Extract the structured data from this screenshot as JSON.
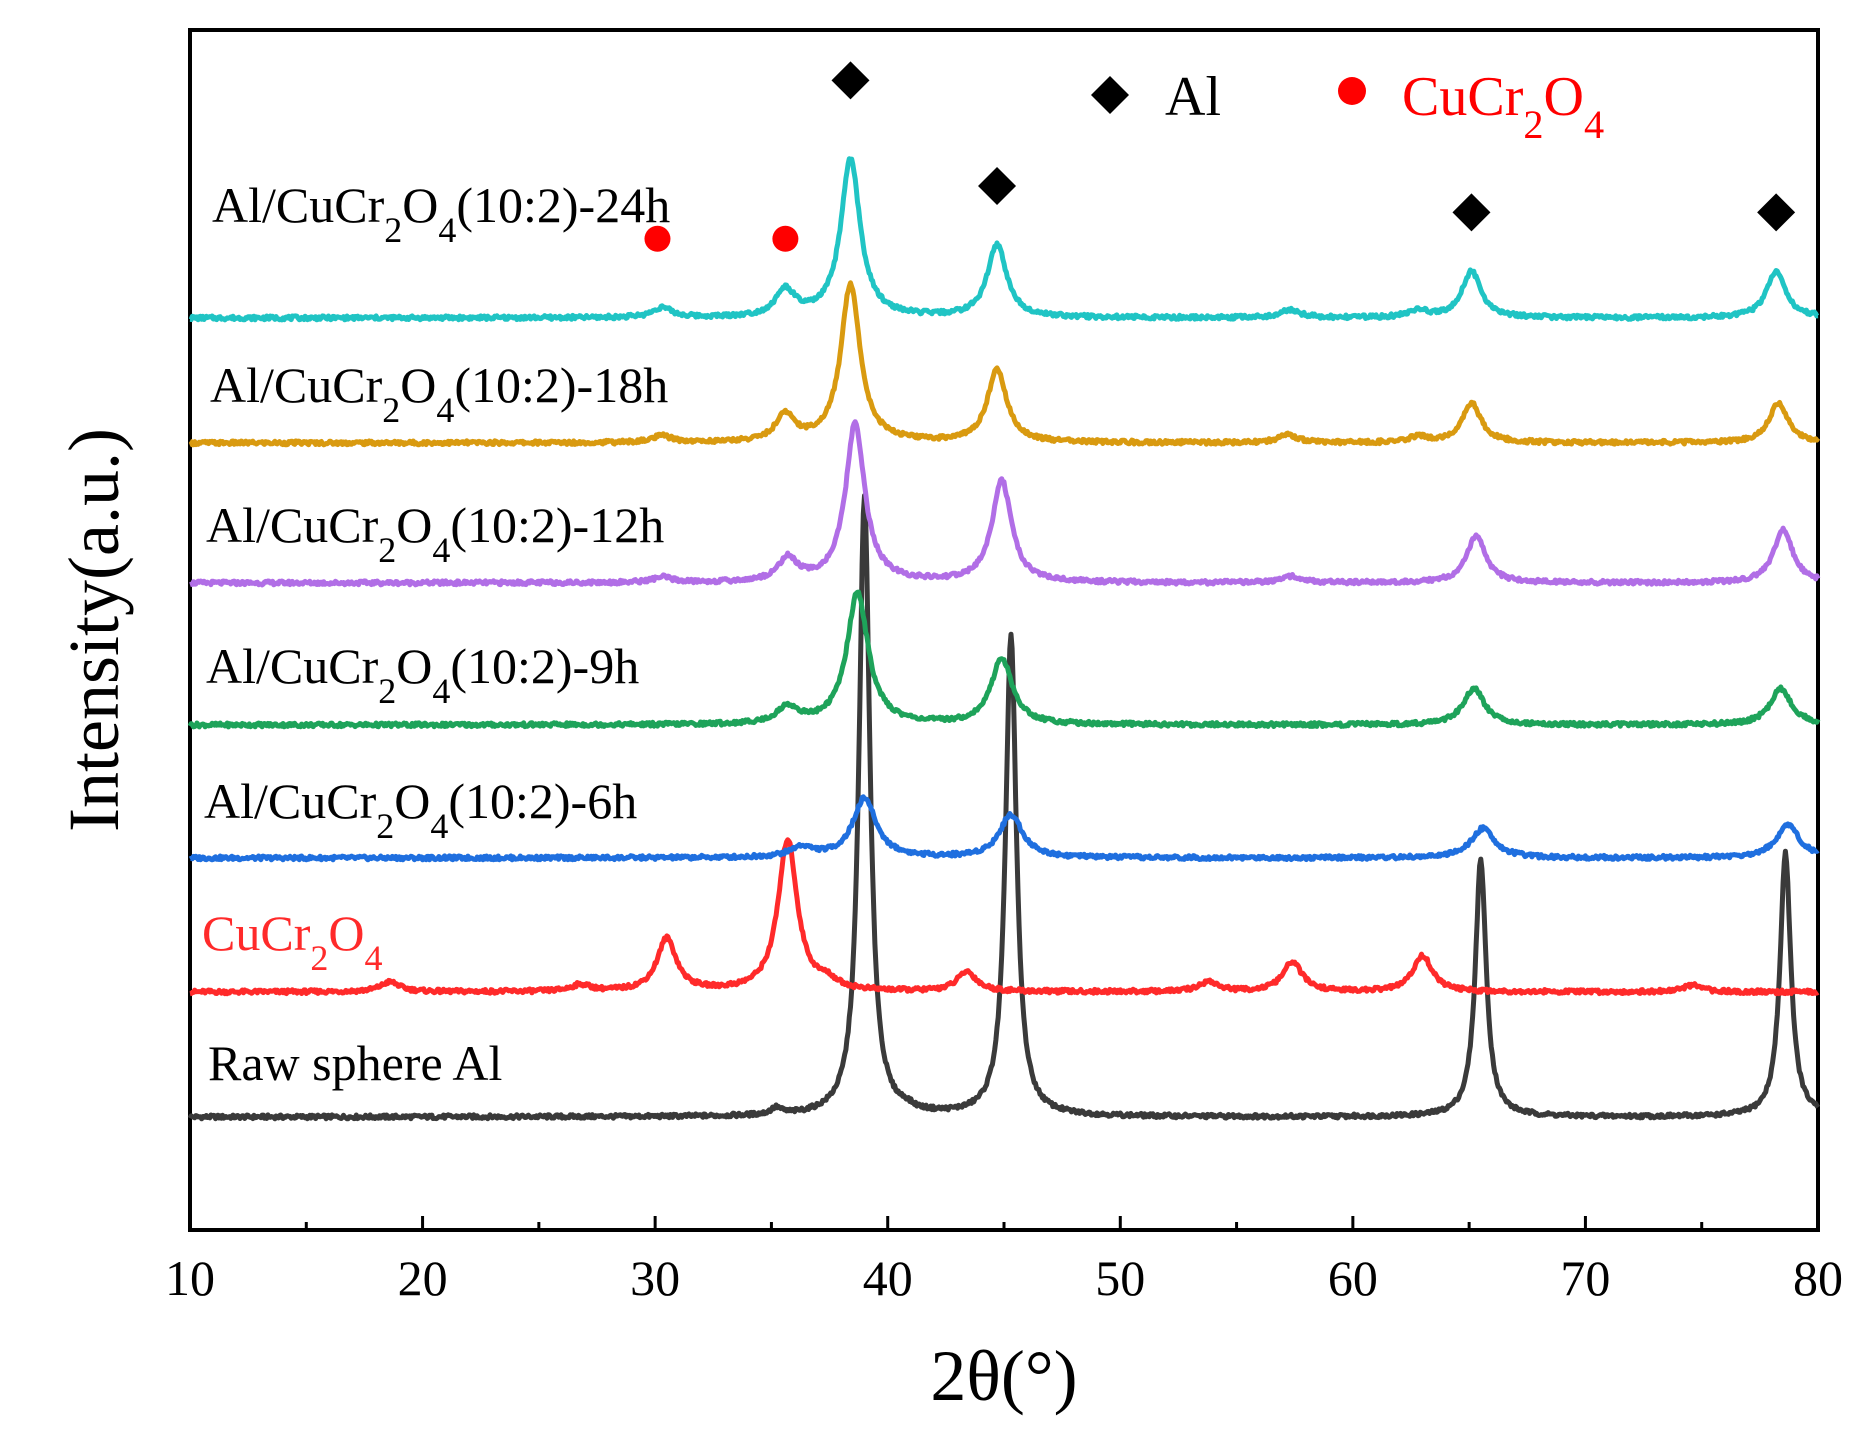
{
  "chart_data": {
    "type": "line",
    "xlabel": "2θ(°)",
    "ylabel": "Intensity(a.u.)",
    "xlim": [
      10,
      80
    ],
    "xticks": [
      "10",
      "20",
      "30",
      "40",
      "50",
      "60",
      "70",
      "80"
    ],
    "yticks_shown": false,
    "grid": false,
    "legend_position": "top-right",
    "legend": [
      {
        "label": "Al",
        "marker": "diamond",
        "color": "#000000"
      },
      {
        "label_parts": [
          {
            "text": "CuCr"
          },
          {
            "text": "2",
            "sub": true
          },
          {
            "text": "O"
          },
          {
            "text": "4",
            "sub": true
          }
        ],
        "marker": "circle",
        "color": "#ff0000"
      }
    ],
    "series": [
      {
        "name": "Raw sphere Al",
        "label_parts": [
          {
            "text": "Raw sphere Al"
          }
        ],
        "color": "#3a3a3a",
        "label_color": "#000000",
        "peaks": [
          [
            35.2,
            0.01
          ],
          [
            39.0,
            0.94
          ],
          [
            40.8,
            0.005
          ],
          [
            45.3,
            0.73
          ],
          [
            65.5,
            0.39
          ],
          [
            78.6,
            0.4
          ]
        ],
        "peak_width": 0.28
      },
      {
        "name": "CuCr2O4",
        "label_parts": [
          {
            "text": "CuCr"
          },
          {
            "text": "2",
            "sub": true
          },
          {
            "text": "O"
          },
          {
            "text": "4",
            "sub": true
          }
        ],
        "color": "#ff2a2a",
        "label_color": "#ff2a2a",
        "peaks": [
          [
            18.6,
            0.015
          ],
          [
            26.8,
            0.01
          ],
          [
            30.5,
            0.08
          ],
          [
            35.7,
            0.23
          ],
          [
            37.4,
            0.012
          ],
          [
            43.4,
            0.03
          ],
          [
            53.8,
            0.015
          ],
          [
            57.4,
            0.045
          ],
          [
            63.0,
            0.055
          ],
          [
            74.6,
            0.01
          ]
        ],
        "peak_width": 0.5
      },
      {
        "name": "Al/CuCr2O4(10:2)-6h",
        "label_parts": [
          {
            "text": "Al/CuCr"
          },
          {
            "text": "2",
            "sub": true
          },
          {
            "text": "O"
          },
          {
            "text": "4",
            "sub": true
          },
          {
            "text": "(10:2)-6h"
          }
        ],
        "color": "#1f6fdf",
        "label_color": "#000000",
        "peaks": [
          [
            36.3,
            0.015
          ],
          [
            39.0,
            0.09
          ],
          [
            45.3,
            0.065
          ],
          [
            65.6,
            0.045
          ],
          [
            78.7,
            0.05
          ]
        ],
        "peak_width": 0.6
      },
      {
        "name": "Al/CuCr2O4(10:2)-9h",
        "label_parts": [
          {
            "text": "Al/CuCr"
          },
          {
            "text": "2",
            "sub": true
          },
          {
            "text": "O"
          },
          {
            "text": "4",
            "sub": true
          },
          {
            "text": "(10:2)-9h"
          }
        ],
        "color": "#1ea35a",
        "label_color": "#000000",
        "peaks": [
          [
            35.7,
            0.025
          ],
          [
            38.7,
            0.2
          ],
          [
            44.9,
            0.1
          ],
          [
            65.2,
            0.055
          ],
          [
            78.4,
            0.055
          ]
        ],
        "peak_width": 0.55
      },
      {
        "name": "Al/CuCr2O4(10:2)-12h",
        "label_parts": [
          {
            "text": "Al/CuCr"
          },
          {
            "text": "2",
            "sub": true
          },
          {
            "text": "O"
          },
          {
            "text": "4",
            "sub": true
          },
          {
            "text": "(10:2)-12h"
          }
        ],
        "color": "#b16ee6",
        "label_color": "#000000",
        "peaks": [
          [
            30.3,
            0.008
          ],
          [
            35.7,
            0.035
          ],
          [
            38.6,
            0.24
          ],
          [
            44.9,
            0.155
          ],
          [
            57.4,
            0.01
          ],
          [
            65.3,
            0.07
          ],
          [
            78.5,
            0.08
          ]
        ],
        "peak_width": 0.5
      },
      {
        "name": "Al/CuCr2O4(10:2)-18h",
        "label_parts": [
          {
            "text": "Al/CuCr"
          },
          {
            "text": "2",
            "sub": true
          },
          {
            "text": "O"
          },
          {
            "text": "4",
            "sub": true
          },
          {
            "text": "(10:2)-18h"
          }
        ],
        "color": "#d99a10",
        "label_color": "#000000",
        "peaks": [
          [
            30.3,
            0.01
          ],
          [
            35.6,
            0.04
          ],
          [
            38.4,
            0.24
          ],
          [
            44.7,
            0.11
          ],
          [
            57.2,
            0.012
          ],
          [
            62.8,
            0.008
          ],
          [
            65.1,
            0.06
          ],
          [
            78.3,
            0.06
          ]
        ],
        "peak_width": 0.5
      },
      {
        "name": "Al/CuCr2O4(10:2)-24h",
        "label_parts": [
          {
            "text": "Al/CuCr"
          },
          {
            "text": "2",
            "sub": true
          },
          {
            "text": "O"
          },
          {
            "text": "4",
            "sub": true
          },
          {
            "text": "(10:2)-24h"
          }
        ],
        "color": "#20c4c4",
        "label_color": "#000000",
        "peaks": [
          [
            30.3,
            0.015
          ],
          [
            35.6,
            0.04
          ],
          [
            38.4,
            0.24
          ],
          [
            44.7,
            0.11
          ],
          [
            57.3,
            0.012
          ],
          [
            62.8,
            0.01
          ],
          [
            65.1,
            0.07
          ],
          [
            78.2,
            0.07
          ]
        ],
        "peak_width": 0.5
      }
    ],
    "markers": [
      {
        "type": "circle",
        "color": "#ff0000",
        "x": 30.1,
        "series": "Al/CuCr2O4(10:2)-24h",
        "level": 0.12
      },
      {
        "type": "circle",
        "color": "#ff0000",
        "x": 35.6,
        "series": "Al/CuCr2O4(10:2)-24h",
        "level": 0.12
      },
      {
        "type": "diamond",
        "color": "#000000",
        "x": 38.4,
        "series": "Al/CuCr2O4(10:2)-24h",
        "level": 0.36
      },
      {
        "type": "diamond",
        "color": "#000000",
        "x": 44.7,
        "series": "Al/CuCr2O4(10:2)-24h",
        "level": 0.2
      },
      {
        "type": "diamond",
        "color": "#000000",
        "x": 65.1,
        "series": "Al/CuCr2O4(10:2)-24h",
        "level": 0.16
      },
      {
        "type": "diamond",
        "color": "#000000",
        "x": 78.2,
        "series": "Al/CuCr2O4(10:2)-24h",
        "level": 0.16
      }
    ]
  }
}
